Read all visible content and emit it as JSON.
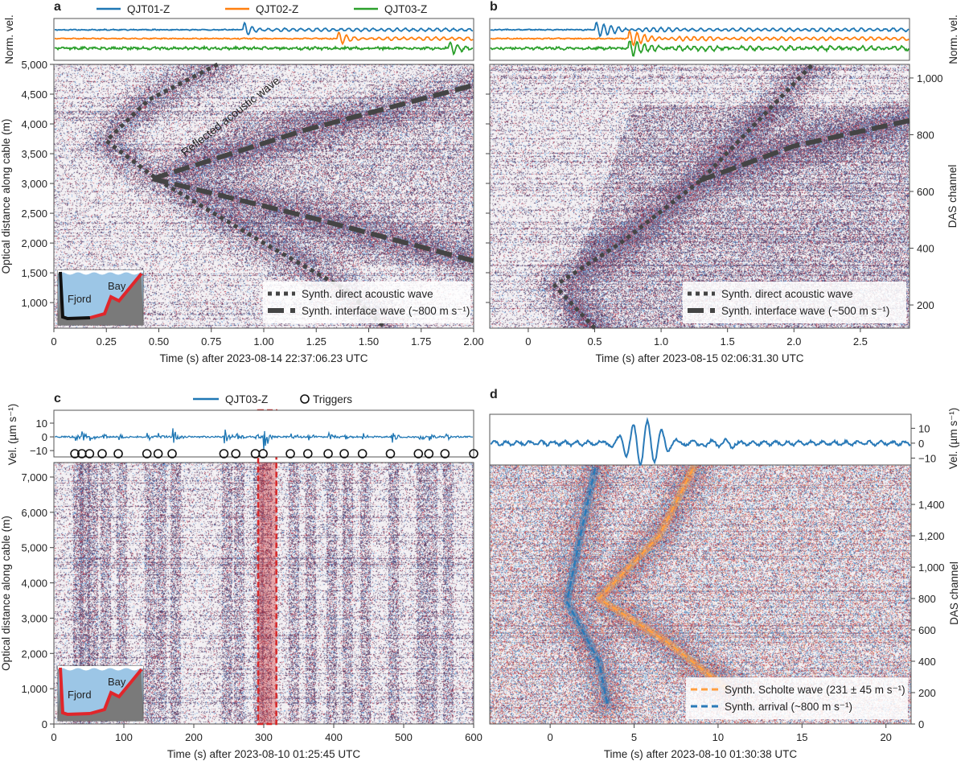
{
  "chart_data": [
    {
      "panel": "a",
      "type": "heatmap",
      "panel_label": "a",
      "traces": {
        "ylabel": "Norm. vel.",
        "legend": [
          {
            "name": "QJT01-Z",
            "color": "#1f77b4"
          },
          {
            "name": "QJT02-Z",
            "color": "#ff7f0e"
          },
          {
            "name": "QJT03-Z",
            "color": "#2ca02c"
          }
        ]
      },
      "xlabel": "Time (s) after 2023-08-14 22:37:06.23 UTC",
      "xlim": [
        0,
        2.0
      ],
      "xticks": [
        0,
        0.25,
        0.5,
        0.75,
        1.0,
        1.25,
        1.5,
        1.75,
        2.0
      ],
      "xtick_labels": [
        "0",
        "0.25",
        "0.50",
        "0.75",
        "1.00",
        "1.25",
        "1.50",
        "1.75",
        "2.00"
      ],
      "ylabel": "Optical distance along cable (m)",
      "ylim": [
        570,
        5000
      ],
      "yticks": [
        1000,
        1500,
        2000,
        2500,
        3000,
        3500,
        4000,
        4500,
        5000
      ],
      "ytick_labels": [
        "1,000",
        "1,500",
        "2,000",
        "2,500",
        "3,000",
        "3,500",
        "4,000",
        "4,500",
        "5,000"
      ],
      "overlays": [
        {
          "name": "Synth. direct acoustic wave",
          "style": "dotted",
          "points": [
            [
              0.78,
              5000
            ],
            [
              0.45,
              4400
            ],
            [
              0.25,
              3715
            ],
            [
              0.5,
              3050
            ],
            [
              1.0,
              2000
            ],
            [
              1.4,
              1200
            ],
            [
              1.57,
              600
            ]
          ]
        },
        {
          "name": "Synth. interface wave (~800 m s⁻¹)",
          "style": "dashed",
          "points": [
            [
              0.47,
              3080
            ],
            [
              1.2,
              3900
            ],
            [
              2.0,
              4650
            ]
          ]
        },
        {
          "name": "",
          "style": "dashed",
          "points": [
            [
              0.47,
              3080
            ],
            [
              1.2,
              2450
            ],
            [
              2.0,
              1700
            ]
          ]
        }
      ],
      "annotation": "Reflected acoustic wave",
      "inset_labels": [
        "Fjord",
        "Bay"
      ],
      "legend_placement": "bottom-right"
    },
    {
      "panel": "b",
      "type": "heatmap",
      "panel_label": "b",
      "traces": {
        "ylabel": "Norm. vel."
      },
      "xlabel": "Time (s) after 2023-08-15 02:06:31.30 UTC",
      "xlim": [
        -0.29,
        2.87
      ],
      "xticks": [
        0,
        0.5,
        1.0,
        1.5,
        2.0,
        2.5
      ],
      "xtick_labels": [
        "0",
        "0.5",
        "1.0",
        "1.5",
        "2.0",
        "2.5"
      ],
      "y2label": "DAS channel",
      "ylim": [
        118,
        1048
      ],
      "yticks": [
        200,
        400,
        600,
        800,
        1000
      ],
      "ytick_labels": [
        "200",
        "400",
        "600",
        "800",
        "1,000"
      ],
      "overlays": [
        {
          "name": "Synth. direct acoustic wave",
          "style": "dotted",
          "points": [
            [
              0.5,
              118
            ],
            [
              0.2,
              268
            ],
            [
              0.7,
              420
            ],
            [
              1.3,
              640
            ],
            [
              2.14,
              1048
            ]
          ]
        },
        {
          "name": "Synth. interface wave (~500 m s⁻¹)",
          "style": "dashed",
          "points": [
            [
              1.29,
              638
            ],
            [
              2.0,
              760
            ],
            [
              2.87,
              850
            ]
          ]
        }
      ],
      "legend_placement": "bottom-right"
    },
    {
      "panel": "c",
      "type": "heatmap",
      "panel_label": "c",
      "traces": {
        "ylabel": "Vel. (µm s⁻¹)",
        "legend": [
          {
            "name": "QJT03-Z",
            "color": "#1f77b4"
          },
          {
            "name": "Triggers",
            "marker": "open-circle"
          }
        ],
        "ylim": [
          -17,
          17
        ],
        "yticks": [
          -10,
          0,
          10
        ],
        "ytick_labels": [
          "−10",
          "0",
          "10"
        ],
        "trigger_times": [
          30,
          40,
          51,
          69,
          92,
          133,
          149,
          169,
          243,
          260,
          288,
          299,
          338,
          363,
          392,
          415,
          441,
          481,
          521,
          536,
          559,
          600
        ],
        "highlight_window": [
          292,
          318
        ],
        "highlight_color": "#d62728"
      },
      "xlabel": "Time (s) after 2023-08-10 01:25:45 UTC",
      "xlim": [
        0,
        600
      ],
      "xticks": [
        0,
        100,
        200,
        300,
        400,
        500,
        600
      ],
      "xtick_labels": [
        "0",
        "100",
        "200",
        "300",
        "400",
        "500",
        "600"
      ],
      "ylabel": "Optical distance along cable (m)",
      "ylim": [
        0,
        7410
      ],
      "yticks": [
        0,
        1000,
        2000,
        3000,
        4000,
        5000,
        6000,
        7000
      ],
      "ytick_labels": [
        "0",
        "1,000",
        "2,000",
        "3,000",
        "4,000",
        "5,000",
        "6,000",
        "7,000"
      ],
      "inset_labels": [
        "Fjord",
        "Bay"
      ]
    },
    {
      "panel": "d",
      "type": "heatmap",
      "panel_label": "d",
      "traces": {
        "y2label": "Vel. (µm s⁻¹)",
        "ylim": [
          -17,
          17
        ],
        "yticks": [
          -10,
          0,
          10
        ],
        "ytick_labels": [
          "−10",
          "0",
          "10"
        ]
      },
      "xlabel": "Time (s) after 2023-08-10 01:30:38 UTC",
      "xlim": [
        -3.6,
        21.5
      ],
      "xticks": [
        0,
        5,
        10,
        15,
        20
      ],
      "xtick_labels": [
        "0",
        "5",
        "10",
        "15",
        "20"
      ],
      "y2label": "DAS channel",
      "ylim": [
        0,
        1667
      ],
      "yticks": [
        0,
        200,
        400,
        600,
        800,
        1000,
        1200,
        1400
      ],
      "ytick_labels": [
        "0",
        "200",
        "400",
        "600",
        "800",
        "1,000",
        "1,200",
        "1,400"
      ],
      "overlays": [
        {
          "name": "Synth. Scholte wave (231 ± 45 m s⁻¹)",
          "style": "dashed",
          "color": "#ff9f40",
          "points": [
            [
              10.6,
              220
            ],
            [
              7.0,
              520
            ],
            [
              2.9,
              800
            ],
            [
              6.5,
              1200
            ],
            [
              8.6,
              1650
            ]
          ]
        },
        {
          "name": "Synth. arrival (~800 m s⁻¹)",
          "style": "dashed",
          "color": "#2a7ab8",
          "points": [
            [
              3.4,
              130
            ],
            [
              2.9,
              400
            ],
            [
              1.0,
              780
            ],
            [
              1.8,
              1200
            ],
            [
              2.7,
              1640
            ]
          ]
        }
      ],
      "legend_placement": "bottom-right"
    }
  ]
}
